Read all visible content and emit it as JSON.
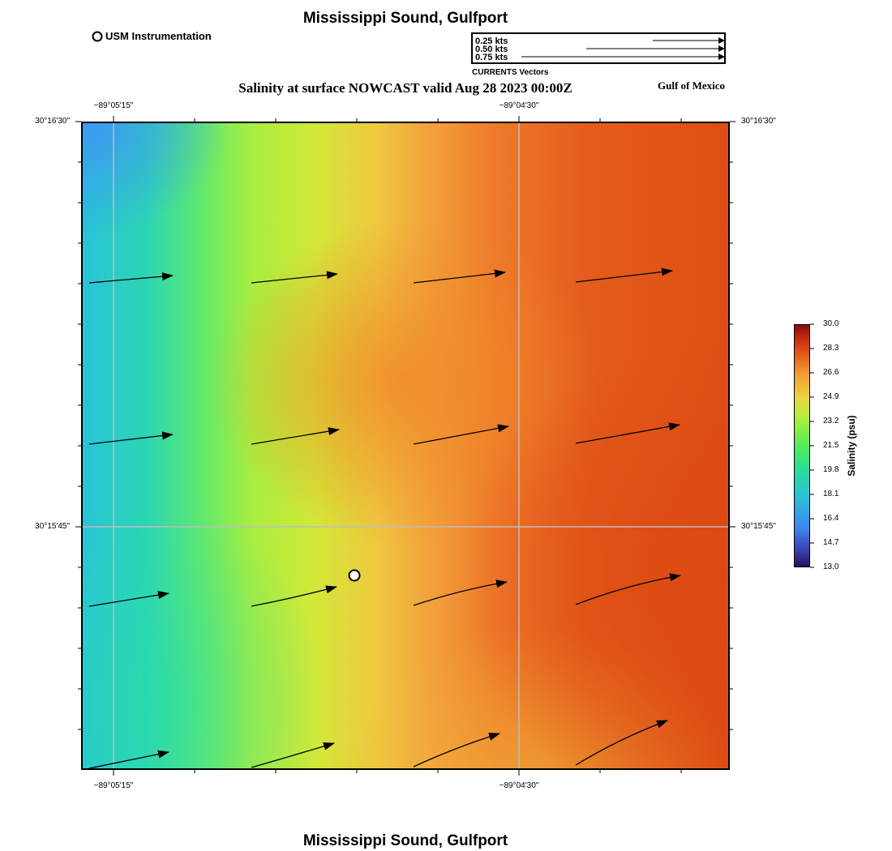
{
  "header": {
    "title": "Mississippi Sound, Gulfport",
    "subtitle": "Salinity at surface NOWCAST valid Aug 28 2023 00:00Z",
    "region_label": "Gulf of Mexico"
  },
  "footer": {
    "title": "Mississippi Sound, Gulfport"
  },
  "station_legend": {
    "label": "USM Instrumentation"
  },
  "vector_legend": {
    "entries": [
      "0.25 kts",
      "0.50 kts",
      "0.75 kts"
    ],
    "caption": "CURRENTS Vectors"
  },
  "axes": {
    "x_ticks_top": [
      "−89°05'15\"",
      "−89°04'30\""
    ],
    "x_ticks_bottom": [
      "−89°05'15\"",
      "−89°04'30\""
    ],
    "y_ticks_left": [
      "30°16'30\"",
      "30°15'45\""
    ],
    "y_ticks_right": [
      "30°16'30\"",
      "30°15'45\""
    ]
  },
  "colorbar": {
    "label": "Salinity (psu)",
    "ticks": [
      "30.0",
      "28.3",
      "26.6",
      "24.9",
      "23.2",
      "21.5",
      "19.8",
      "18.1",
      "16.4",
      "14.7",
      "13.0"
    ],
    "colors": {
      "low": "#26145e",
      "mid": "#62ee52",
      "high": "#8a0c08"
    }
  },
  "map": {
    "vector_color": "#000000",
    "grid_color": "#bdbdbd",
    "station_marker": {
      "fill": "#ffffff",
      "stroke": "#000000"
    }
  }
}
